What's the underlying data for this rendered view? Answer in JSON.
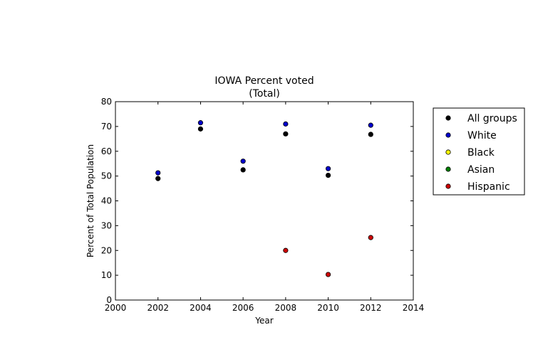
{
  "chart_data": {
    "type": "scatter",
    "title": "IOWA Percent voted",
    "subtitle": "(Total)",
    "xlabel": "Year",
    "ylabel": "Percent of Total Population",
    "xlim": [
      2000,
      2014
    ],
    "ylim": [
      0,
      80
    ],
    "xticks": [
      2000,
      2002,
      2004,
      2006,
      2008,
      2010,
      2012,
      2014
    ],
    "yticks": [
      0,
      10,
      20,
      30,
      40,
      50,
      60,
      70,
      80
    ],
    "grid": false,
    "legend_position": "outside-right",
    "series": [
      {
        "name": "All groups",
        "color": "#000000",
        "x": [
          2002,
          2004,
          2006,
          2008,
          2010,
          2012
        ],
        "y": [
          49.0,
          69.0,
          52.5,
          67.0,
          50.3,
          66.8
        ]
      },
      {
        "name": "White",
        "color": "#0000cc",
        "x": [
          2002,
          2004,
          2006,
          2008,
          2010,
          2012
        ],
        "y": [
          51.3,
          71.5,
          56.0,
          71.0,
          53.0,
          70.5
        ]
      },
      {
        "name": "Black",
        "color": "#ffff00",
        "x": [],
        "y": []
      },
      {
        "name": "Asian",
        "color": "#008000",
        "x": [],
        "y": []
      },
      {
        "name": "Hispanic",
        "color": "#cc0000",
        "x": [
          2008,
          2010,
          2012
        ],
        "y": [
          20.0,
          10.3,
          25.2
        ]
      }
    ]
  }
}
